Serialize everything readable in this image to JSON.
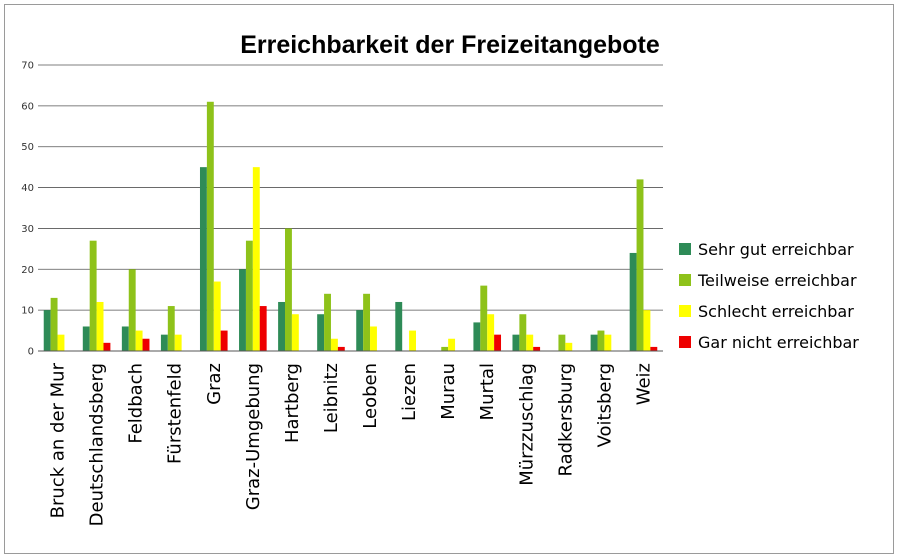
{
  "chart_data": {
    "type": "bar",
    "title": "Erreichbarkeit der Freizeitangebote",
    "xlabel": "",
    "ylabel": "",
    "ylim": [
      0,
      70
    ],
    "yticks": [
      0,
      10,
      20,
      30,
      40,
      50,
      60,
      70
    ],
    "grid": true,
    "legend_position": "right",
    "categories": [
      "Bruck an der Mur",
      "Deutschlandsberg",
      "Feldbach",
      "Fürstenfeld",
      "Graz",
      "Graz-Umgebung",
      "Hartberg",
      "Leibnitz",
      "Leoben",
      "Liezen",
      "Murau",
      "Murtal",
      "Mürzzuschlag",
      "Radkersburg",
      "Voitsberg",
      "Weiz"
    ],
    "series": [
      {
        "name": "Sehr gut erreichbar",
        "color": "#2e8b57",
        "values": [
          10,
          6,
          6,
          4,
          45,
          20,
          12,
          9,
          10,
          12,
          0,
          7,
          4,
          0,
          4,
          24
        ]
      },
      {
        "name": "Teilweise erreichbar",
        "color": "#8ec21a",
        "values": [
          13,
          27,
          20,
          11,
          61,
          27,
          30,
          14,
          14,
          0,
          1,
          16,
          9,
          4,
          5,
          42
        ]
      },
      {
        "name": "Schlecht erreichbar",
        "color": "#ffff00",
        "values": [
          4,
          12,
          5,
          4,
          17,
          45,
          9,
          3,
          6,
          5,
          3,
          9,
          4,
          2,
          4,
          10
        ]
      },
      {
        "name": "Gar nicht erreichbar",
        "color": "#ee0000",
        "values": [
          0,
          2,
          3,
          0,
          5,
          11,
          0,
          1,
          0,
          0,
          0,
          4,
          1,
          0,
          0,
          1
        ]
      }
    ]
  }
}
